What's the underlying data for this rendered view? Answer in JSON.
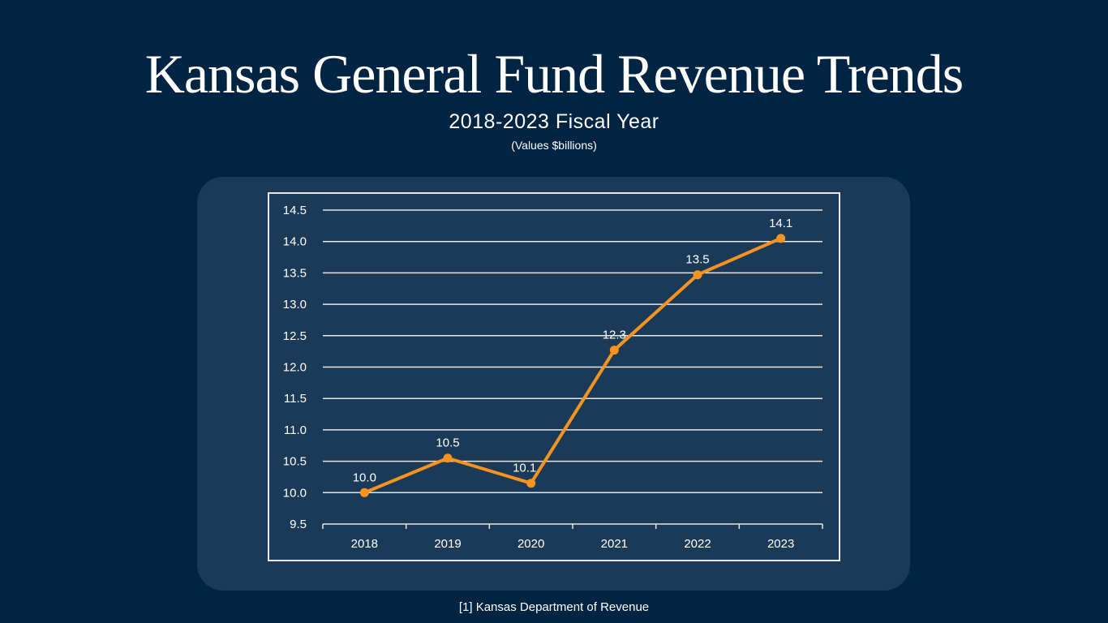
{
  "header": {
    "title": "Kansas General Fund Revenue Trends",
    "subtitle": "2018-2023 Fiscal Year",
    "units": "(Values $billions)"
  },
  "footer": {
    "source": "[1] Kansas Department of Revenue"
  },
  "colors": {
    "background": "#012443",
    "panel": "#1b3a57",
    "line": "#f7931e",
    "grid": "#e6e6e6"
  },
  "chart_data": {
    "type": "line",
    "title": "",
    "xlabel": "",
    "ylabel": "",
    "categories": [
      "2018",
      "2019",
      "2020",
      "2021",
      "2022",
      "2023"
    ],
    "series": [
      {
        "values": [
          10.0,
          10.55,
          10.15,
          12.27,
          13.47,
          14.05
        ],
        "labels": [
          "10.0",
          "10.5",
          "10.1",
          "12.3",
          "13.5",
          "14.1"
        ]
      }
    ],
    "ylim": [
      9.5,
      14.5
    ],
    "yticks": [
      "9.5",
      "10.0",
      "10.5",
      "11.0",
      "11.5",
      "12.0",
      "12.5",
      "13.0",
      "13.5",
      "14.0",
      "14.5"
    ],
    "grid": true,
    "legend": "none"
  }
}
